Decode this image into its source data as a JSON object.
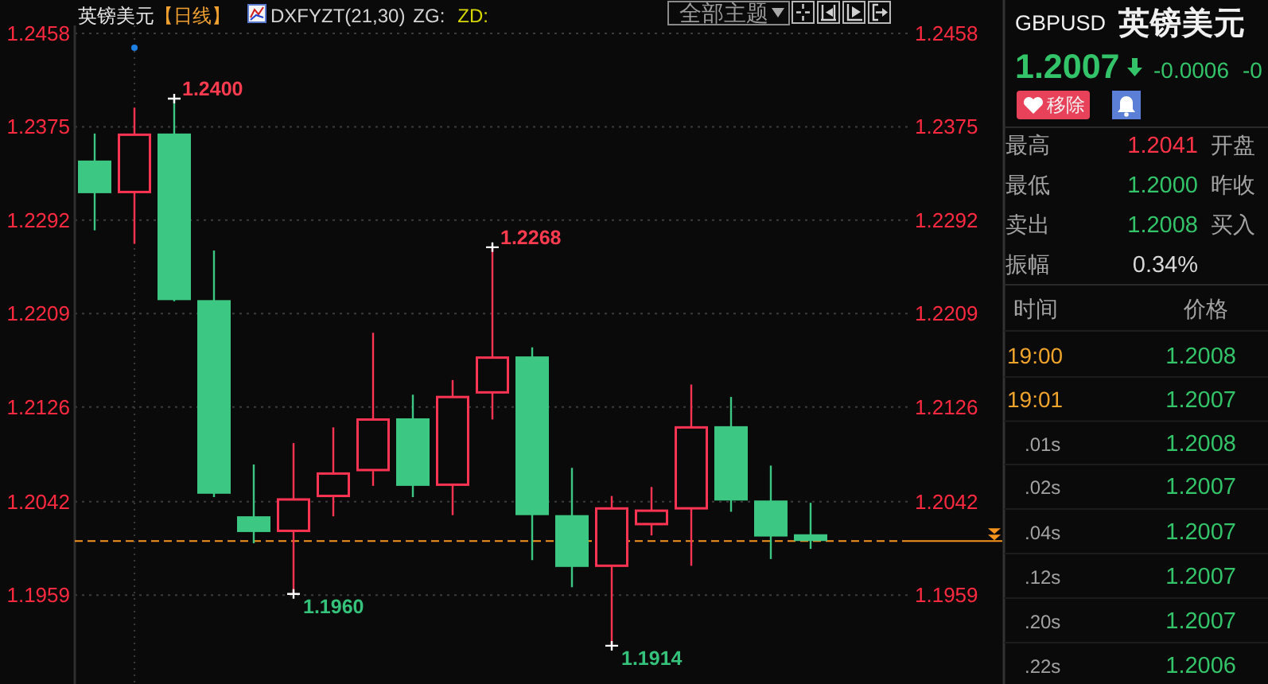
{
  "chart_data": [
    {
      "type": "candlestick",
      "title": "英镑美元",
      "subtitle": "【日线】",
      "categories": [
        null,
        null,
        null,
        null,
        null,
        null,
        null,
        null,
        null,
        null,
        null,
        null,
        null,
        null,
        null,
        null,
        null,
        null,
        null,
        null,
        null
      ],
      "ohlc": [
        [
          1.2345,
          1.2369,
          1.2283,
          1.2316
        ],
        [
          1.2316,
          1.2392,
          1.2271,
          1.2369
        ],
        [
          1.2369,
          1.24,
          1.222,
          1.2221
        ],
        [
          1.2221,
          1.2265,
          1.2046,
          1.2049
        ],
        [
          1.2029,
          1.2075,
          1.2005,
          1.2015
        ],
        [
          1.2015,
          1.2094,
          1.196,
          1.2045
        ],
        [
          1.2046,
          1.2108,
          1.2029,
          1.2068
        ],
        [
          1.2069,
          1.2192,
          1.2056,
          1.2116
        ],
        [
          1.2116,
          1.2137,
          1.2046,
          1.2056
        ],
        [
          1.2056,
          1.215,
          1.203,
          1.2136
        ],
        [
          1.2138,
          1.2268,
          1.2115,
          1.2171
        ],
        [
          1.2171,
          1.2179,
          1.199,
          1.203
        ],
        [
          1.203,
          1.2072,
          1.1966,
          1.1984
        ],
        [
          1.1984,
          1.2047,
          1.1914,
          1.2037
        ],
        [
          1.2021,
          1.2055,
          1.2012,
          1.2035
        ],
        [
          1.2035,
          1.2146,
          1.1985,
          1.2109
        ],
        [
          1.2109,
          1.2135,
          1.2033,
          1.2043
        ],
        [
          1.2043,
          1.2074,
          1.1991,
          1.2011
        ],
        [
          1.2013,
          1.2041,
          1.2,
          1.2007
        ],
        null,
        null
      ],
      "colors": [
        "#3cc882",
        "#ff3352",
        "#3cc882",
        "#3cc882",
        "#3cc882",
        "#ff3352",
        "#ff3352",
        "#ff3352",
        "#3cc882",
        "#ff3352",
        "#ff3352",
        "#3cc882",
        "#3cc882",
        "#ff3352",
        "#ff3352",
        "#ff3352",
        "#3cc882",
        "#3cc882",
        "#3cc882",
        null,
        null
      ],
      "ylim": [
        1.188,
        1.2465
      ],
      "yticks": [
        1.1959,
        1.2042,
        1.2126,
        1.2209,
        1.2292,
        1.2375,
        1.2458
      ],
      "y2lim": [
        1.188,
        1.2465
      ],
      "y2ticks": [
        1.1959,
        1.2042,
        1.2126,
        1.2209,
        1.2292,
        1.2375,
        1.2458
      ],
      "grid": "y",
      "ref_lines": [
        {
          "axis": "y",
          "value": 1.2007,
          "color": "#f7941d",
          "line_style": "dashed"
        }
      ],
      "annotations": [
        "DXFYZT(21,30)",
        "ZG:",
        "ZD:",
        "全部主题",
        "1.2400",
        "1.2268",
        "1.1960",
        "1.1914"
      ]
    },
    {
      "type": "other",
      "annotations": [
        "GBPUSD",
        "英镑美元",
        "1.2007",
        "-0.0006",
        "-0",
        "移除",
        "最高",
        "1.2041",
        "开盘",
        "最低",
        "1.2000",
        "昨收",
        "卖出",
        "1.2008",
        "买入",
        "振幅",
        "0.34%",
        "时间",
        "价格",
        "19:00",
        "1.2008",
        "19:01",
        "1.2007",
        ".01s",
        "1.2008",
        ".02s",
        "1.2007",
        ".04s",
        "1.2007",
        ".12s",
        "1.2007",
        ".20s",
        "1.2007",
        ".22s",
        "1.2006"
      ]
    }
  ]
}
